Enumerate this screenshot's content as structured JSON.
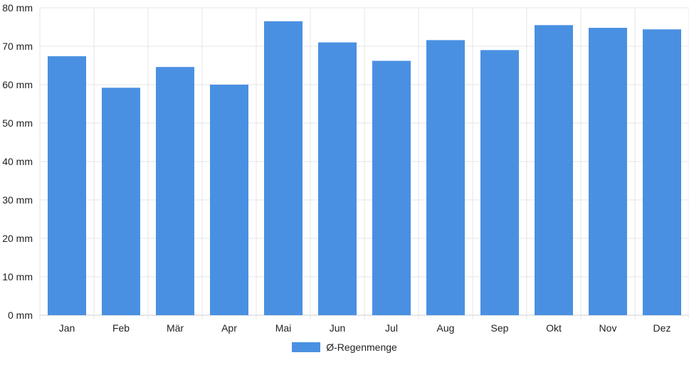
{
  "chart_data": {
    "type": "bar",
    "categories": [
      "Jan",
      "Feb",
      "Mär",
      "Apr",
      "Mai",
      "Jun",
      "Jul",
      "Aug",
      "Sep",
      "Okt",
      "Nov",
      "Dez"
    ],
    "series": [
      {
        "name": "Ø-Regenmenge",
        "values": [
          67.4,
          59.2,
          64.6,
          60.0,
          76.5,
          71.0,
          66.2,
          71.6,
          69.0,
          75.5,
          74.8,
          74.4
        ]
      }
    ],
    "y_ticks": [
      "0 mm",
      "10 mm",
      "20 mm",
      "30 mm",
      "40 mm",
      "50 mm",
      "60 mm",
      "70 mm",
      "80 mm"
    ],
    "ylim": [
      0,
      80
    ],
    "grid": true,
    "legend_position": "bottom",
    "colors": {
      "bar": "#4a90e2",
      "grid": "#e6e6e6"
    }
  }
}
